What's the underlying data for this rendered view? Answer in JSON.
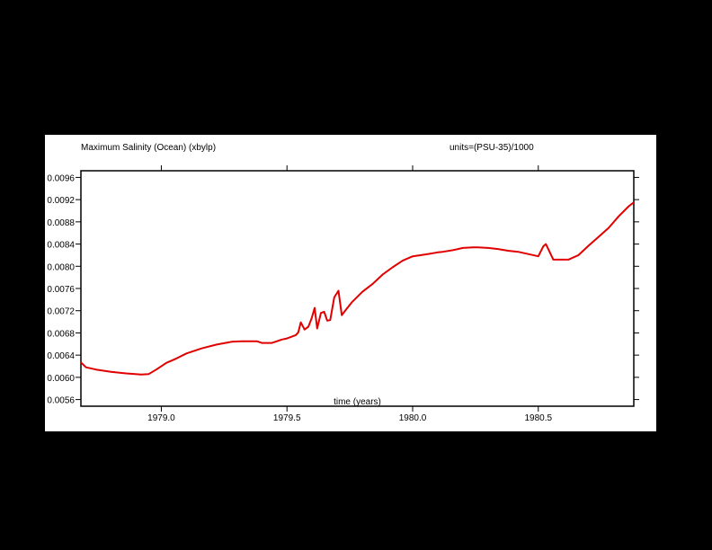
{
  "chart_data": {
    "type": "line",
    "title": "Maximum Salinity (Ocean) (xbylp)",
    "units_label": "units=(PSU-35)/1000",
    "xlabel": "time (years)",
    "ylabel": "",
    "xlim": [
      1978.68,
      1980.88
    ],
    "ylim": [
      0.00548,
      0.00972
    ],
    "x_ticks": [
      1979.0,
      1979.5,
      1980.0,
      1980.5
    ],
    "x_tick_labels": [
      "1979.0",
      "1979.5",
      "1980.0",
      "1980.5"
    ],
    "y_ticks": [
      0.0056,
      0.006,
      0.0064,
      0.0068,
      0.0072,
      0.0076,
      0.008,
      0.0084,
      0.0088,
      0.0092,
      0.0096
    ],
    "y_tick_labels": [
      "0.0056",
      "0.0060",
      "0.0064",
      "0.0068",
      "0.0072",
      "0.0076",
      "0.0080",
      "0.0084",
      "0.0088",
      "0.0092",
      "0.0096"
    ],
    "grid": false,
    "series": [
      {
        "color": "#e00000",
        "x": [
          1978.68,
          1978.7,
          1978.74,
          1978.8,
          1978.86,
          1978.92,
          1978.95,
          1978.98,
          1979.02,
          1979.06,
          1979.1,
          1979.16,
          1979.22,
          1979.28,
          1979.32,
          1979.38,
          1979.4,
          1979.44,
          1979.48,
          1979.5,
          1979.535,
          1979.545,
          1979.555,
          1979.57,
          1979.585,
          1979.598,
          1979.61,
          1979.62,
          1979.635,
          1979.648,
          1979.66,
          1979.672,
          1979.688,
          1979.705,
          1979.718,
          1979.735,
          1979.76,
          1979.8,
          1979.84,
          1979.88,
          1979.92,
          1979.96,
          1980.0,
          1980.06,
          1980.1,
          1980.12,
          1980.16,
          1980.2,
          1980.24,
          1980.26,
          1980.3,
          1980.34,
          1980.38,
          1980.42,
          1980.5,
          1980.52,
          1980.53,
          1980.56,
          1980.62,
          1980.66,
          1980.7,
          1980.74,
          1980.78,
          1980.82,
          1980.86,
          1980.88
        ],
        "y": [
          0.00627,
          0.00618,
          0.00614,
          0.0061,
          0.00607,
          0.00605,
          0.00606,
          0.00614,
          0.00626,
          0.00634,
          0.00643,
          0.00652,
          0.00659,
          0.00664,
          0.00665,
          0.00665,
          0.00662,
          0.00662,
          0.00668,
          0.0067,
          0.00676,
          0.00681,
          0.00699,
          0.00686,
          0.00691,
          0.00706,
          0.00725,
          0.00688,
          0.00716,
          0.00718,
          0.00702,
          0.00703,
          0.00744,
          0.00756,
          0.00712,
          0.00722,
          0.00736,
          0.00754,
          0.00768,
          0.00785,
          0.00798,
          0.0081,
          0.00818,
          0.00822,
          0.00825,
          0.00826,
          0.00829,
          0.00833,
          0.00834,
          0.00834,
          0.00833,
          0.00831,
          0.00828,
          0.00826,
          0.00818,
          0.00836,
          0.0084,
          0.00812,
          0.00812,
          0.0082,
          0.00837,
          0.00853,
          0.00869,
          0.0089,
          0.00908,
          0.00915
        ]
      }
    ]
  }
}
